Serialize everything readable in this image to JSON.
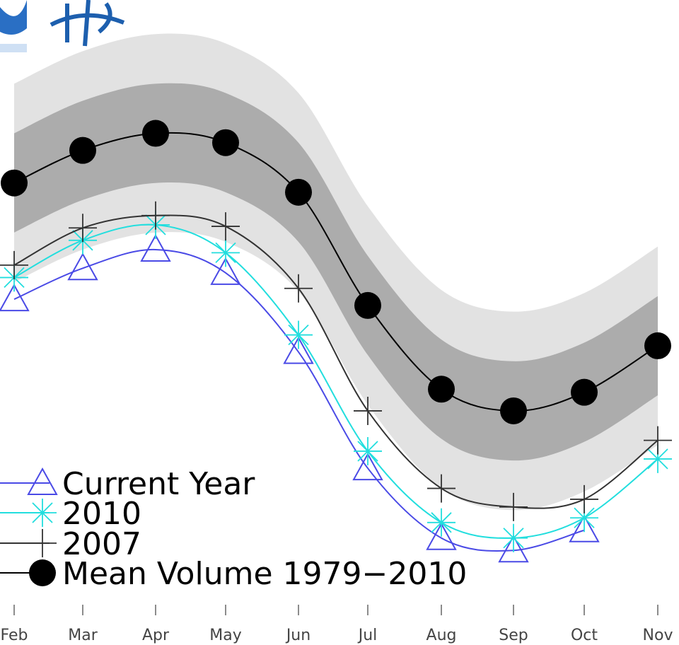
{
  "chart_data": {
    "type": "line",
    "categories": [
      "Feb",
      "Mar",
      "Apr",
      "May",
      "Jun",
      "Jul",
      "Aug",
      "Sep",
      "Oct",
      "Nov"
    ],
    "ylim": [
      0,
      39
    ],
    "legend": "lower left",
    "band_colors": [
      "#e2e2e2",
      "#acacac"
    ],
    "series": [
      {
        "name": "Current Year",
        "color": "#4a4ae6",
        "marker": "triangle",
        "values": [
          19.7,
          21.7,
          22.9,
          21.4,
          16.3,
          8.8,
          4.3,
          3.5,
          4.8,
          null
        ]
      },
      {
        "name": "2010",
        "color": "#22dede",
        "marker": "star",
        "values": [
          21.1,
          23.5,
          24.5,
          22.7,
          17.4,
          9.9,
          5.3,
          4.3,
          5.6,
          9.4
        ]
      },
      {
        "name": "2007",
        "color": "#333333",
        "marker": "plus",
        "values": [
          21.9,
          24.3,
          25.1,
          24.4,
          20.4,
          12.5,
          7.5,
          6.3,
          6.8,
          10.6
        ]
      },
      {
        "name": "Mean Volume 1979−2010",
        "color": "#000000",
        "marker": "circle",
        "values": [
          27.2,
          29.3,
          30.4,
          29.8,
          26.6,
          19.3,
          13.9,
          12.5,
          13.7,
          16.7
        ],
        "std": [
          3.2,
          3.2,
          3.2,
          3.2,
          3.2,
          3.2,
          3.2,
          3.2,
          3.2,
          3.2
        ]
      }
    ]
  }
}
